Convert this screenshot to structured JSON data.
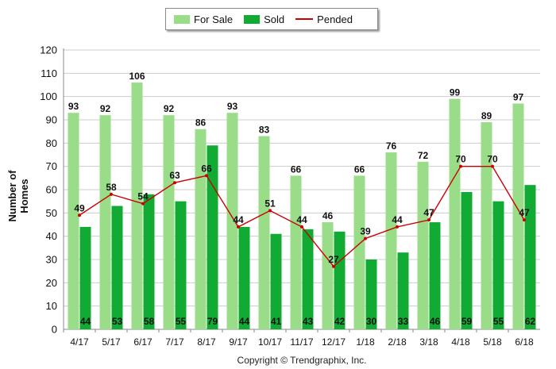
{
  "legend": {
    "for_sale": "For Sale",
    "sold": "Sold",
    "pended": "Pended"
  },
  "ylabel": "Number of Homes",
  "copyright": "Copyright © Trendgraphix, Inc.",
  "colors": {
    "for_sale": "#99dd88",
    "sold": "#11aa33",
    "pended": "#cc0000"
  },
  "chart_data": {
    "type": "bar",
    "categories": [
      "4/17",
      "5/17",
      "6/17",
      "7/17",
      "8/17",
      "9/17",
      "10/17",
      "11/17",
      "12/17",
      "1/18",
      "2/18",
      "3/18",
      "4/18",
      "5/18",
      "6/18"
    ],
    "series": [
      {
        "name": "For Sale",
        "type": "bar",
        "values": [
          93,
          92,
          106,
          92,
          86,
          93,
          83,
          66,
          46,
          66,
          76,
          72,
          99,
          89,
          97
        ]
      },
      {
        "name": "Sold",
        "type": "bar",
        "values": [
          44,
          53,
          58,
          55,
          79,
          44,
          41,
          43,
          42,
          30,
          33,
          46,
          59,
          55,
          62
        ]
      },
      {
        "name": "Pended",
        "type": "line",
        "values": [
          49,
          58,
          54,
          63,
          66,
          44,
          51,
          44,
          27,
          39,
          44,
          47,
          70,
          70,
          47
        ]
      }
    ],
    "ylabel": "Number of Homes",
    "ylim": [
      0,
      120
    ],
    "yticks": [
      0,
      10,
      20,
      30,
      40,
      50,
      60,
      70,
      80,
      90,
      100,
      110,
      120
    ],
    "grid": true,
    "legend_position": "top-center"
  }
}
